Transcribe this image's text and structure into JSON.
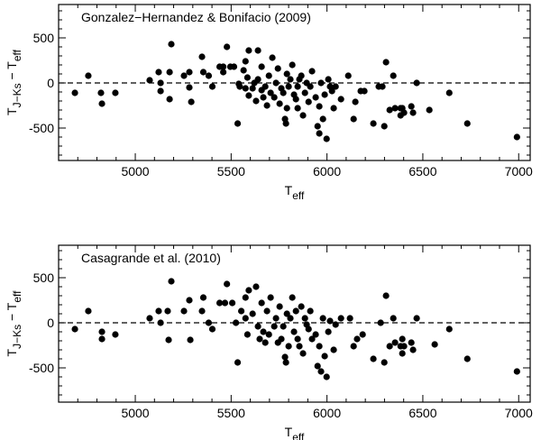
{
  "chart_data": [
    {
      "type": "scatter",
      "annotation": "Gonzalez−Hernandez & Bonifacio (2009)",
      "xlabel": [
        "T",
        "eff"
      ],
      "ylabel": [
        "T",
        "J−Ks",
        " − T",
        "eff"
      ],
      "color": "#000000",
      "hline": 0,
      "xlim": [
        4600,
        7060
      ],
      "ylim": [
        -860,
        870
      ],
      "xticks": [
        5000,
        5500,
        6000,
        6500,
        7000
      ],
      "yticks": [
        -500,
        0,
        500
      ],
      "xminorticks": [
        4700,
        4800,
        4900,
        5100,
        5200,
        5300,
        5400,
        5600,
        5700,
        5800,
        5900,
        6100,
        6200,
        6300,
        6400,
        6600,
        6700,
        6800,
        6900
      ],
      "yminorticks": [
        -800,
        -700,
        -600,
        -400,
        -300,
        -200,
        -100,
        100,
        200,
        300,
        400,
        600,
        700,
        800
      ],
      "x": [
        4685,
        4755,
        4821,
        4826,
        4896,
        5075,
        5122,
        5132,
        5132,
        5179,
        5179,
        5188,
        5254,
        5282,
        5282,
        5292,
        5348,
        5355,
        5383,
        5402,
        5440,
        5459,
        5459,
        5478,
        5496,
        5515,
        5534,
        5540,
        5545,
        5565,
        5575,
        5575,
        5585,
        5592,
        5592,
        5612,
        5621,
        5630,
        5640,
        5640,
        5659,
        5659,
        5668,
        5678,
        5687,
        5697,
        5706,
        5715,
        5725,
        5734,
        5744,
        5753,
        5762,
        5772,
        5781,
        5786,
        5791,
        5791,
        5800,
        5809,
        5819,
        5828,
        5838,
        5847,
        5847,
        5856,
        5866,
        5875,
        5885,
        5894,
        5904,
        5913,
        5922,
        5941,
        5951,
        5960,
        5960,
        5969,
        5979,
        5988,
        5998,
        6007,
        6016,
        6026,
        6035,
        6045,
        6073,
        6111,
        6139,
        6148,
        6176,
        6195,
        6242,
        6270,
        6289,
        6299,
        6308,
        6327,
        6346,
        6355,
        6384,
        6384,
        6393,
        6402,
        6440,
        6449,
        6468,
        6534,
        6638,
        6732,
        6991
      ],
      "values": [
        -110,
        80,
        -110,
        -230,
        -110,
        30,
        120,
        0,
        -90,
        -180,
        120,
        430,
        80,
        120,
        -50,
        -210,
        290,
        120,
        80,
        -40,
        180,
        180,
        120,
        400,
        180,
        180,
        -450,
        -10,
        -40,
        140,
        240,
        -60,
        60,
        360,
        -140,
        -60,
        0,
        -200,
        360,
        40,
        180,
        -80,
        -160,
        -40,
        -250,
        80,
        -110,
        280,
        -160,
        0,
        160,
        -230,
        -60,
        -110,
        -400,
        -450,
        100,
        -280,
        -40,
        40,
        200,
        -130,
        -180,
        -40,
        -280,
        40,
        80,
        -360,
        -110,
        0,
        -210,
        -40,
        130,
        -160,
        -480,
        -260,
        -560,
        0,
        -400,
        -130,
        -620,
        40,
        -40,
        -90,
        -280,
        -40,
        -180,
        80,
        -400,
        -210,
        -90,
        -90,
        -450,
        -40,
        -40,
        -480,
        230,
        -300,
        80,
        -280,
        -280,
        -360,
        -280,
        -330,
        -260,
        -330,
        0,
        -300,
        -110,
        -450,
        -600
      ]
    },
    {
      "type": "scatter",
      "annotation": "Casagrande et al. (2010)",
      "xlabel": [
        "T",
        "eff"
      ],
      "ylabel": [
        "T",
        "J−Ks",
        " − T",
        "eff"
      ],
      "color": "#000000",
      "hline": 0,
      "xlim": [
        4600,
        7060
      ],
      "ylim": [
        -880,
        860
      ],
      "xticks": [
        5000,
        5500,
        6000,
        6500,
        7000
      ],
      "yticks": [
        -500,
        0,
        500
      ],
      "xminorticks": [
        4700,
        4800,
        4900,
        5100,
        5200,
        5300,
        5400,
        5600,
        5700,
        5800,
        5900,
        6100,
        6200,
        6300,
        6400,
        6600,
        6700,
        6800,
        6900
      ],
      "yminorticks": [
        -800,
        -700,
        -600,
        -400,
        -300,
        -200,
        -100,
        100,
        200,
        300,
        400,
        600,
        700,
        800
      ],
      "x": [
        4685,
        4755,
        4826,
        4826,
        4896,
        5075,
        5122,
        5132,
        5169,
        5174,
        5188,
        5254,
        5282,
        5287,
        5348,
        5355,
        5383,
        5402,
        5440,
        5468,
        5478,
        5506,
        5525,
        5534,
        5553,
        5575,
        5575,
        5585,
        5592,
        5612,
        5630,
        5640,
        5649,
        5659,
        5668,
        5678,
        5687,
        5697,
        5706,
        5725,
        5734,
        5744,
        5753,
        5762,
        5772,
        5781,
        5786,
        5791,
        5800,
        5809,
        5819,
        5828,
        5838,
        5847,
        5856,
        5866,
        5875,
        5885,
        5894,
        5904,
        5913,
        5922,
        5941,
        5951,
        5960,
        5969,
        5979,
        5988,
        5998,
        6007,
        6016,
        6035,
        6045,
        6073,
        6120,
        6139,
        6157,
        6186,
        6242,
        6280,
        6299,
        6308,
        6327,
        6346,
        6355,
        6384,
        6393,
        6393,
        6402,
        6440,
        6449,
        6468,
        6562,
        6638,
        6732,
        6991
      ],
      "values": [
        -70,
        130,
        -100,
        -180,
        -130,
        50,
        130,
        0,
        130,
        -190,
        460,
        130,
        250,
        -190,
        130,
        280,
        0,
        -70,
        220,
        220,
        430,
        220,
        0,
        -440,
        130,
        280,
        50,
        -130,
        360,
        100,
        400,
        -40,
        -180,
        220,
        -100,
        -220,
        130,
        -130,
        280,
        -40,
        50,
        -220,
        180,
        -180,
        -40,
        -380,
        -440,
        100,
        -260,
        50,
        280,
        -100,
        130,
        -180,
        -260,
        180,
        -340,
        50,
        -20,
        -70,
        130,
        -180,
        -130,
        -480,
        -260,
        -540,
        50,
        -370,
        -600,
        -100,
        20,
        -300,
        -20,
        50,
        50,
        -260,
        -180,
        -130,
        -400,
        0,
        -440,
        300,
        -260,
        50,
        -220,
        -260,
        -180,
        -340,
        -260,
        -220,
        -300,
        50,
        -240,
        -70,
        -400,
        -540
      ]
    }
  ]
}
